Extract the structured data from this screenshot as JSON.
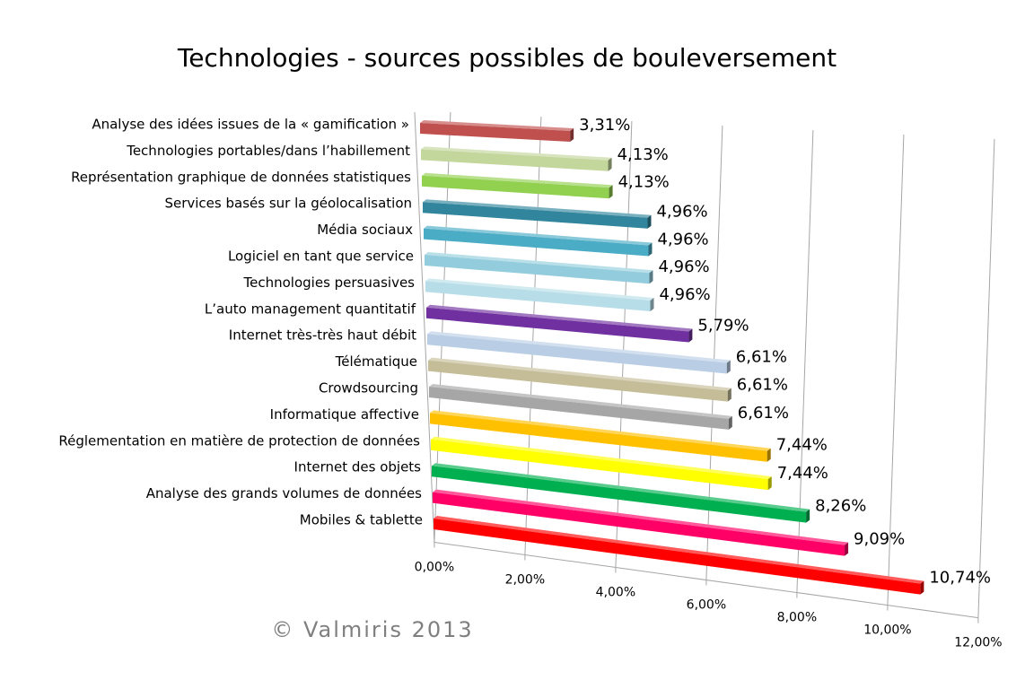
{
  "chart_data": {
    "type": "bar3d",
    "title": "Technologies - sources possibles de bouleversement",
    "watermark": "© Valmiris 2013",
    "categories": [
      "Analyse des idées issues de la « gamification »",
      "Technologies portables/dans l’habillement",
      "Représentation graphique de données statistiques",
      "Services basés sur la géolocalisation",
      "Média sociaux",
      "Logiciel en tant que service",
      "Technologies persuasives",
      "L’auto management quantitatif",
      "Internet très-très haut débit",
      "Télématique",
      "Crowdsourcing",
      "Informatique affective",
      "Réglementation en matière de protection de données",
      "Internet des objets",
      "Analyse des grands volumes de données",
      "Mobiles & tablette"
    ],
    "values": [
      3.31,
      4.13,
      4.13,
      4.96,
      4.96,
      4.96,
      4.96,
      5.79,
      6.61,
      6.61,
      6.61,
      7.44,
      7.44,
      8.26,
      9.09,
      10.74
    ],
    "value_labels": [
      "3,31%",
      "4,13%",
      "4,13%",
      "4,96%",
      "4,96%",
      "4,96%",
      "4,96%",
      "5,79%",
      "6,61%",
      "6,61%",
      "6,61%",
      "7,44%",
      "7,44%",
      "8,26%",
      "9,09%",
      "10,74%"
    ],
    "colors": [
      "#c0504d",
      "#c3d69b",
      "#92d050",
      "#31859c",
      "#4bacc6",
      "#93cddd",
      "#b7dee8",
      "#7030a0",
      "#b9cde5",
      "#c4bd97",
      "#a6a6a6",
      "#ffc000",
      "#ffff00",
      "#00b050",
      "#ff0066",
      "#ff0000"
    ],
    "xlim": [
      0,
      12
    ],
    "xticks": [
      {
        "value": 0,
        "label": "0,00%"
      },
      {
        "value": 2,
        "label": "2,00%"
      },
      {
        "value": 4,
        "label": "4,00%"
      },
      {
        "value": 6,
        "label": "6,00%"
      },
      {
        "value": 8,
        "label": "8,00%"
      },
      {
        "value": 10,
        "label": "10,00%"
      },
      {
        "value": 12,
        "label": "12,00%"
      }
    ],
    "grid": true
  }
}
